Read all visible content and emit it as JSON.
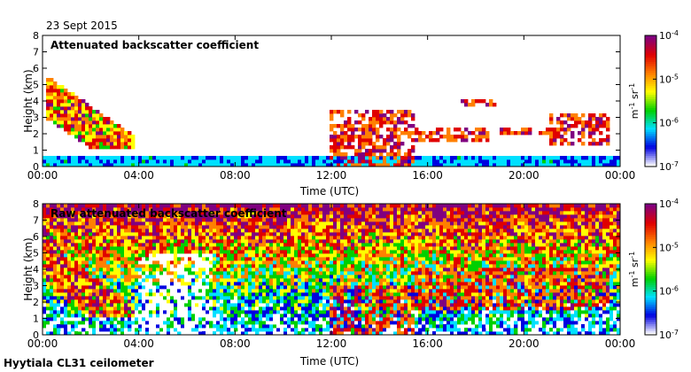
{
  "figure": {
    "date": "23 Sept 2015",
    "instrument": "Hyytiala CL31 ceilometer"
  },
  "chart_data": [
    {
      "type": "heatmap",
      "title": "Attenuated backscatter coefficient",
      "xlabel": "Time (UTC)",
      "ylabel": "Height (km)",
      "xlim": [
        0,
        24
      ],
      "ylim": [
        0,
        8
      ],
      "x_tick_values": [
        0,
        4,
        8,
        12,
        16,
        20,
        24
      ],
      "x_tick_labels": [
        "00:00",
        "04:00",
        "08:00",
        "12:00",
        "16:00",
        "20:00",
        "00:00"
      ],
      "y_tick_values": [
        0,
        1,
        2,
        3,
        4,
        5,
        6,
        7,
        8
      ],
      "y_tick_labels": [
        "0",
        "1",
        "2",
        "3",
        "4",
        "5",
        "6",
        "7",
        "8"
      ],
      "colorbar": {
        "scale": "log",
        "range": [
          1e-07,
          0.0001
        ],
        "tick_values": [
          0.0001,
          1e-05,
          1e-06,
          1e-07
        ],
        "tick_labels": [
          {
            "base": "10",
            "exp": "-4"
          },
          {
            "base": "10",
            "exp": "-5"
          },
          {
            "base": "10",
            "exp": "-6"
          },
          {
            "base": "10",
            "exp": "-7"
          }
        ],
        "label": {
          "m": "m",
          "m_exp": "-1",
          "sr": "sr",
          "sr_exp": "-1"
        },
        "colors": [
          "#ffffff",
          "#0000e0",
          "#00e0ff",
          "#00d000",
          "#ffff00",
          "#ff8000",
          "#e00000",
          "#800080"
        ]
      },
      "features": [
        {
          "name": "boundary-layer",
          "x": [
            0,
            24
          ],
          "y": [
            0,
            0.7
          ]
        },
        {
          "name": "aerosol-plume",
          "x": [
            0.2,
            3.8
          ],
          "y": [
            1,
            5.5
          ]
        },
        {
          "name": "cloud-layer",
          "x": [
            12,
            15.5
          ],
          "y": [
            0,
            3.5
          ]
        },
        {
          "name": "cloud-layer",
          "x": [
            15.5,
            18.5
          ],
          "y": [
            1.6,
            2.4
          ]
        },
        {
          "name": "cloud-layer",
          "x": [
            17.2,
            18.8
          ],
          "y": [
            3.6,
            4
          ]
        },
        {
          "name": "cloud-layer",
          "x": [
            19,
            21.2
          ],
          "y": [
            1.9,
            2.3
          ]
        },
        {
          "name": "cloud-layer",
          "x": [
            21,
            23.5
          ],
          "y": [
            1.3,
            3.2
          ]
        }
      ]
    },
    {
      "type": "heatmap",
      "title": "Raw attenuated backscatter coefficient",
      "xlabel": "Time (UTC)",
      "ylabel": "Height (km)",
      "xlim": [
        0,
        24
      ],
      "ylim": [
        0,
        8
      ],
      "x_tick_values": [
        0,
        4,
        8,
        12,
        16,
        20,
        24
      ],
      "x_tick_labels": [
        "00:00",
        "04:00",
        "08:00",
        "12:00",
        "16:00",
        "20:00",
        "00:00"
      ],
      "y_tick_values": [
        0,
        1,
        2,
        3,
        4,
        5,
        6,
        7,
        8
      ],
      "y_tick_labels": [
        "0",
        "1",
        "2",
        "3",
        "4",
        "5",
        "6",
        "7",
        "8"
      ],
      "colorbar": {
        "scale": "log",
        "range": [
          1e-07,
          0.0001
        ],
        "tick_values": [
          0.0001,
          1e-05,
          1e-06,
          1e-07
        ],
        "tick_labels": [
          {
            "base": "10",
            "exp": "-4"
          },
          {
            "base": "10",
            "exp": "-5"
          },
          {
            "base": "10",
            "exp": "-6"
          },
          {
            "base": "10",
            "exp": "-7"
          }
        ],
        "label": {
          "m": "m",
          "m_exp": "-1",
          "sr": "sr",
          "sr_exp": "-1"
        },
        "colors": [
          "#ffffff",
          "#0000e0",
          "#00e0ff",
          "#00d000",
          "#ffff00",
          "#ff8000",
          "#e00000",
          "#800080"
        ]
      },
      "features": [
        {
          "name": "noise-background",
          "x": [
            0,
            24
          ],
          "y": [
            0,
            8
          ]
        },
        {
          "name": "aerosol-plume",
          "x": [
            0.2,
            3.8
          ],
          "y": [
            1,
            5.5
          ]
        },
        {
          "name": "white-gap",
          "x": [
            4,
            7
          ],
          "y": [
            0,
            5
          ]
        },
        {
          "name": "cloud-layer",
          "x": [
            12,
            15.5
          ],
          "y": [
            0,
            3
          ]
        },
        {
          "name": "cloud-layer",
          "x": [
            15.5,
            23.5
          ],
          "y": [
            1.5,
            4
          ]
        }
      ]
    }
  ]
}
